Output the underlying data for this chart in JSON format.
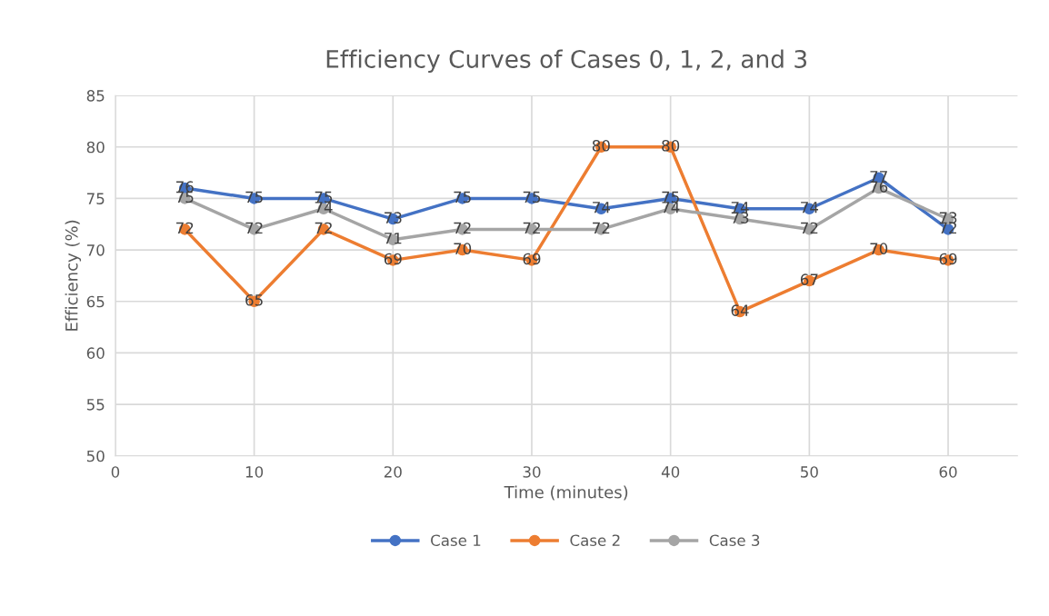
{
  "chart_data": {
    "type": "line",
    "title": "Efficiency Curves of Cases 0, 1, 2, and 3",
    "xlabel": "Time (minutes)",
    "ylabel": "Efficiency (%)",
    "x": [
      5,
      10,
      15,
      20,
      25,
      30,
      35,
      40,
      45,
      50,
      55,
      60
    ],
    "series": [
      {
        "name": "Case 1",
        "color": "#4472c4",
        "values": [
          76,
          75,
          75,
          73,
          75,
          75,
          74,
          75,
          74,
          74,
          77,
          72
        ]
      },
      {
        "name": "Case 2",
        "color": "#ed7d31",
        "values": [
          72,
          65,
          72,
          69,
          70,
          69,
          80,
          80,
          64,
          67,
          70,
          69
        ]
      },
      {
        "name": "Case 3",
        "color": "#a5a5a5",
        "values": [
          75,
          72,
          74,
          71,
          72,
          72,
          72,
          74,
          73,
          72,
          76,
          73
        ]
      }
    ],
    "xlim": [
      0,
      65
    ],
    "xticks": [
      0,
      10,
      20,
      30,
      40,
      50,
      60
    ],
    "ylim": [
      50,
      85
    ],
    "yticks": [
      50,
      55,
      60,
      65,
      70,
      75,
      80,
      85
    ],
    "grid": true,
    "legend": "bottom",
    "marker": "circle",
    "line_style": "solid",
    "data_labels": true
  }
}
